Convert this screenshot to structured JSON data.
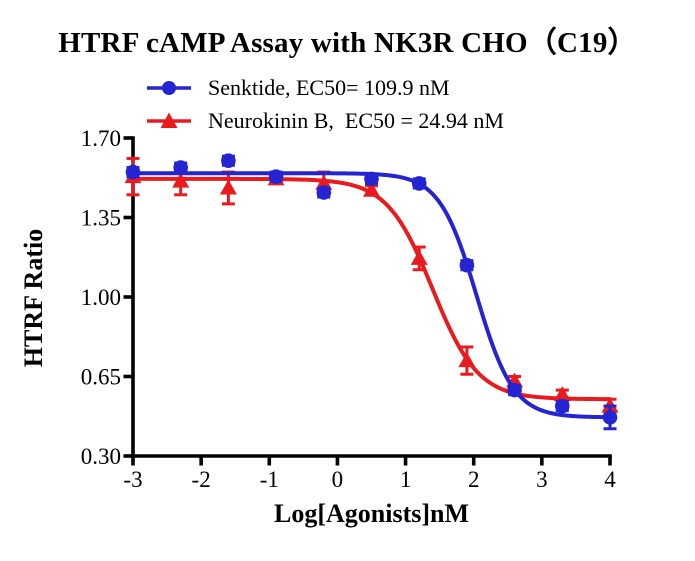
{
  "chart": {
    "title": "HTRF cAMP Assay with NK3R CHO（C19）"
  },
  "chart_data": {
    "type": "line-scatter",
    "subtype": "dose-response sigmoid fit with error bars",
    "title": "HTRF cAMP Assay with NK3R CHO（C19）",
    "xlabel": "Log[Agonists]nM",
    "ylabel": "HTRF Ratio",
    "xlim": [
      -3,
      4
    ],
    "ylim": [
      0.3,
      1.7
    ],
    "x_tick_labels": [
      "-3",
      "-2",
      "-1",
      "0",
      "1",
      "2",
      "3",
      "4"
    ],
    "y_tick_labels": [
      "1.70",
      "1.35",
      "1.00",
      "0.65",
      "0.30"
    ],
    "grid": false,
    "legend_position": "top",
    "axis_color": "#000000",
    "x": [
      -3,
      -2.3,
      -1.6,
      -0.9,
      -0.2,
      0.5,
      1.2,
      1.9,
      2.6,
      3.3,
      4
    ],
    "series": [
      {
        "name": "Senktide",
        "legend_label": "Senktide, EC50= 109.9 nM",
        "ec50_nM": 109.9,
        "color": "#2424d2",
        "marker": "circle",
        "values": [
          1.55,
          1.57,
          1.6,
          1.53,
          1.46,
          1.52,
          1.5,
          1.14,
          0.59,
          0.52,
          0.47
        ],
        "errors": [
          0.02,
          0.02,
          0.02,
          0.02,
          0.02,
          0.02,
          0.02,
          0.02,
          0.02,
          0.02,
          0.05
        ],
        "fit": {
          "top": 1.545,
          "bottom": 0.47,
          "logEC50": 2.041,
          "hill": 1.6
        }
      },
      {
        "name": "Neurokinin B",
        "legend_label": "Neurokinin B,  EC50 = 24.94 nM",
        "ec50_nM": 24.94,
        "color": "#ea1b1e",
        "marker": "triangle",
        "values": [
          1.53,
          1.51,
          1.48,
          1.52,
          1.5,
          1.47,
          1.17,
          0.72,
          0.63,
          0.57,
          0.52
        ],
        "errors": [
          0.08,
          0.06,
          0.07,
          0.02,
          0.05,
          0.02,
          0.05,
          0.06,
          0.02,
          0.02,
          0.03
        ],
        "fit": {
          "top": 1.52,
          "bottom": 0.55,
          "logEC50": 1.397,
          "hill": 1.3
        }
      }
    ]
  }
}
